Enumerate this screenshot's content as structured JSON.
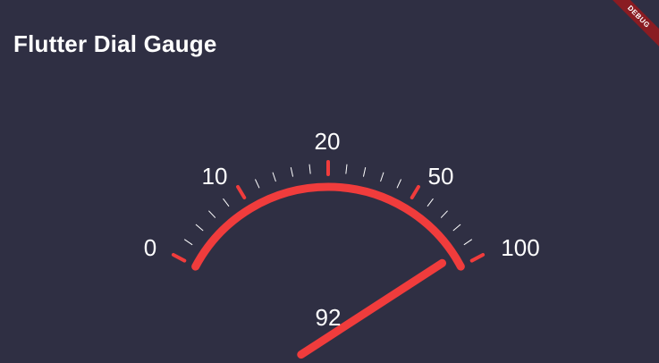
{
  "app": {
    "title": "Flutter Dial Gauge",
    "debug_banner": "DEBUG"
  },
  "gauge": {
    "value": 92,
    "value_text": "92",
    "labels": [
      {
        "value": 0,
        "text": "0"
      },
      {
        "value": 10,
        "text": "10"
      },
      {
        "value": 20,
        "text": "20"
      },
      {
        "value": 50,
        "text": "50"
      },
      {
        "value": 100,
        "text": "100"
      }
    ],
    "colors": {
      "background": "#2f2f43",
      "accent": "#f03c3c",
      "tick_minor": "#ffffff",
      "text": "#ffffff"
    }
  }
}
